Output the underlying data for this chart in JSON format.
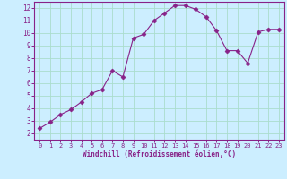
{
  "x": [
    0,
    1,
    2,
    3,
    4,
    5,
    6,
    7,
    8,
    9,
    10,
    11,
    12,
    13,
    14,
    15,
    16,
    17,
    18,
    19,
    20,
    21,
    22,
    23
  ],
  "y": [
    2.4,
    2.9,
    3.5,
    3.9,
    4.5,
    5.2,
    5.5,
    7.0,
    6.5,
    9.6,
    9.9,
    11.0,
    11.6,
    12.2,
    12.2,
    11.9,
    11.3,
    10.2,
    8.6,
    8.6,
    7.6,
    10.1,
    10.3,
    10.3
  ],
  "line_color": "#882288",
  "marker": "D",
  "marker_size": 2.5,
  "bg_color": "#cceeff",
  "grid_color": "#aaddcc",
  "xlabel": "Windchill (Refroidissement éolien,°C)",
  "xlabel_color": "#882288",
  "tick_color": "#882288",
  "xlim": [
    -0.5,
    23.5
  ],
  "ylim": [
    1.5,
    12.5
  ],
  "yticks": [
    2,
    3,
    4,
    5,
    6,
    7,
    8,
    9,
    10,
    11,
    12
  ],
  "xticks": [
    0,
    1,
    2,
    3,
    4,
    5,
    6,
    7,
    8,
    9,
    10,
    11,
    12,
    13,
    14,
    15,
    16,
    17,
    18,
    19,
    20,
    21,
    22,
    23
  ]
}
